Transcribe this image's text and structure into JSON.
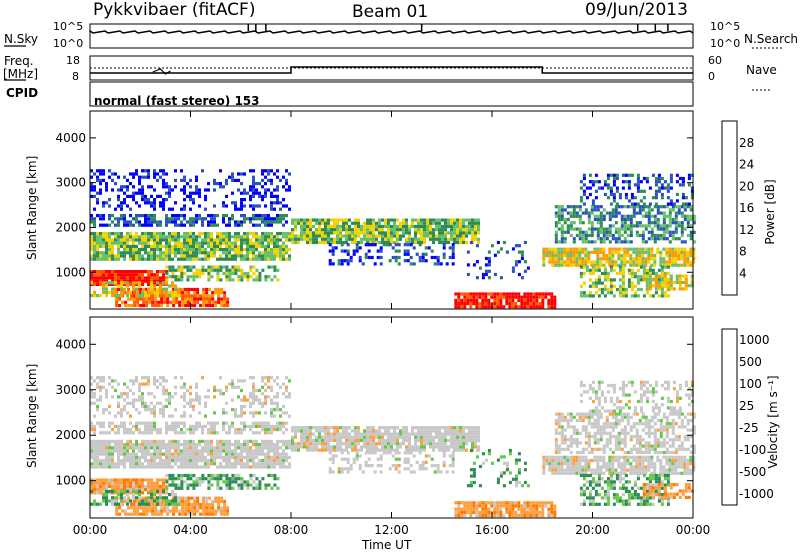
{
  "header": {
    "station": "Pykkvibaer (fitACF)",
    "beam": "Beam 01",
    "date": "09/Jun/2013"
  },
  "aux_panels": {
    "nsky_label": "N.Sky",
    "nsearch_label": "N.Search",
    "freq_label_line1": "Freq.",
    "freq_label_line2": "[MHz]",
    "nave_label": "Nave",
    "cpid_label": "CPID",
    "cpid_text": "normal (fast stereo) 153",
    "noise_ticks": [
      "10^5",
      "10^0"
    ],
    "freq_ticks": [
      "18",
      "8"
    ],
    "nave_ticks": [
      "60",
      "0"
    ]
  },
  "chart_data": [
    {
      "type": "heatmap",
      "title": "",
      "xlabel": "",
      "ylabel": "Slant Range [km]",
      "colorbar_label": "Power [dB]",
      "colorbar_ticks": [
        "28",
        "24",
        "20",
        "16",
        "12",
        "8",
        "4"
      ],
      "ylim": [
        180,
        4600
      ],
      "yticks": [
        1000,
        2000,
        3000,
        4000
      ],
      "colors": [
        "#0000ff",
        "#2a52be",
        "#2e8b57",
        "#66c06a",
        "#f2d200",
        "#ff9a00",
        "#ff5a00",
        "#ff0000"
      ]
    },
    {
      "type": "heatmap",
      "title": "",
      "xlabel": "Time UT",
      "ylabel": "Slant Range [km]",
      "colorbar_label": "Velocity [m s⁻¹]",
      "colorbar_ticks": [
        "1000",
        "500",
        "100",
        "25",
        "-25",
        "-100",
        "-500",
        "-1000"
      ],
      "ylim": [
        180,
        4600
      ],
      "yticks": [
        1000,
        2000,
        3000,
        4000
      ],
      "xticks": [
        "00:00",
        "04:00",
        "08:00",
        "12:00",
        "16:00",
        "20:00",
        "00:00"
      ],
      "colors": [
        "#1e3cc8",
        "#1f6e8c",
        "#2e8b57",
        "#66c84a",
        "#c8c8c8",
        "#ffa040",
        "#ff7a00",
        "#ff0000"
      ]
    }
  ]
}
